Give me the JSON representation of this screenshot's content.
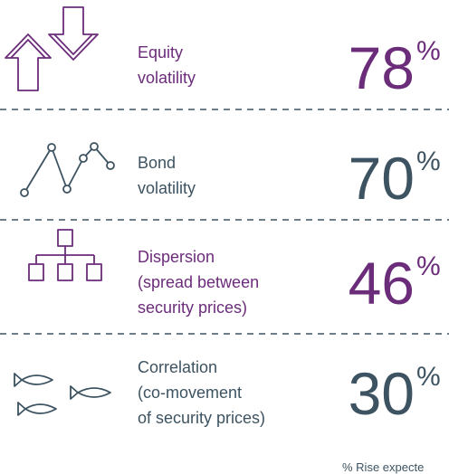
{
  "items": [
    {
      "label": [
        "Equity",
        "volatility"
      ],
      "value": 78,
      "color": "#6b2c7a"
    },
    {
      "label": [
        "Bond",
        "volatility"
      ],
      "value": 70,
      "color": "#3d5361"
    },
    {
      "label": [
        "Dispersion",
        "(spread between",
        "security prices)"
      ],
      "value": 46,
      "color": "#6b2c7a"
    },
    {
      "label": [
        "Correlation",
        "(co-movement",
        "of security prices)"
      ],
      "value": 30,
      "color": "#3d5361"
    }
  ],
  "unit": "%",
  "footnote": "% Rise expecte"
}
